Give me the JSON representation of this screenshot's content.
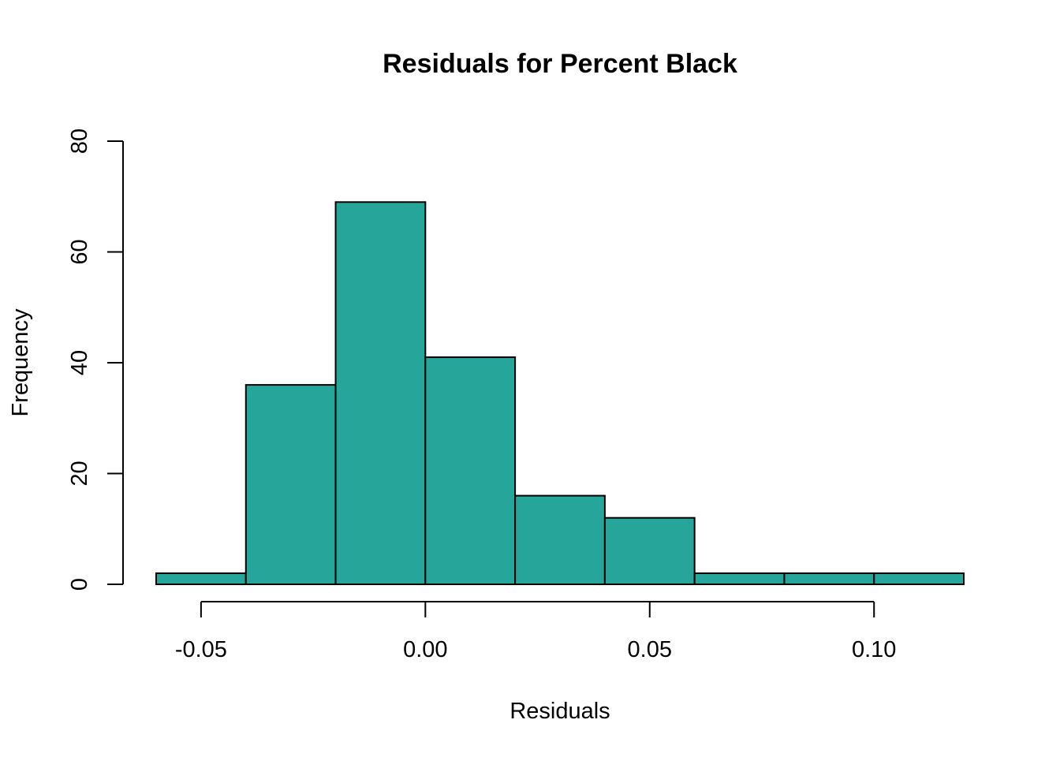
{
  "chart_data": {
    "type": "bar",
    "subtype": "histogram",
    "title": "Residuals for Percent Black",
    "xlabel": "Residuals",
    "ylabel": "Frequency",
    "bar_color": "#26A69A",
    "bins": [
      {
        "start": -0.06,
        "end": -0.04,
        "count": 2
      },
      {
        "start": -0.04,
        "end": -0.02,
        "count": 36
      },
      {
        "start": -0.02,
        "end": 0.0,
        "count": 69
      },
      {
        "start": 0.0,
        "end": 0.02,
        "count": 41
      },
      {
        "start": 0.02,
        "end": 0.04,
        "count": 16
      },
      {
        "start": 0.04,
        "end": 0.06,
        "count": 12
      },
      {
        "start": 0.06,
        "end": 0.08,
        "count": 2
      },
      {
        "start": 0.08,
        "end": 0.1,
        "count": 2
      },
      {
        "start": 0.1,
        "end": 0.12,
        "count": 2
      }
    ],
    "xlim": [
      -0.06,
      0.12
    ],
    "ylim": [
      0,
      80
    ],
    "x_ticks": [
      {
        "value": -0.05,
        "label": "-0.05"
      },
      {
        "value": 0.0,
        "label": "0.00"
      },
      {
        "value": 0.05,
        "label": "0.05"
      },
      {
        "value": 0.1,
        "label": "0.10"
      }
    ],
    "y_ticks": [
      {
        "value": 0,
        "label": "0"
      },
      {
        "value": 20,
        "label": "20"
      },
      {
        "value": 40,
        "label": "40"
      },
      {
        "value": 60,
        "label": "60"
      },
      {
        "value": 80,
        "label": "80"
      }
    ],
    "grid": false,
    "legend": "none"
  }
}
